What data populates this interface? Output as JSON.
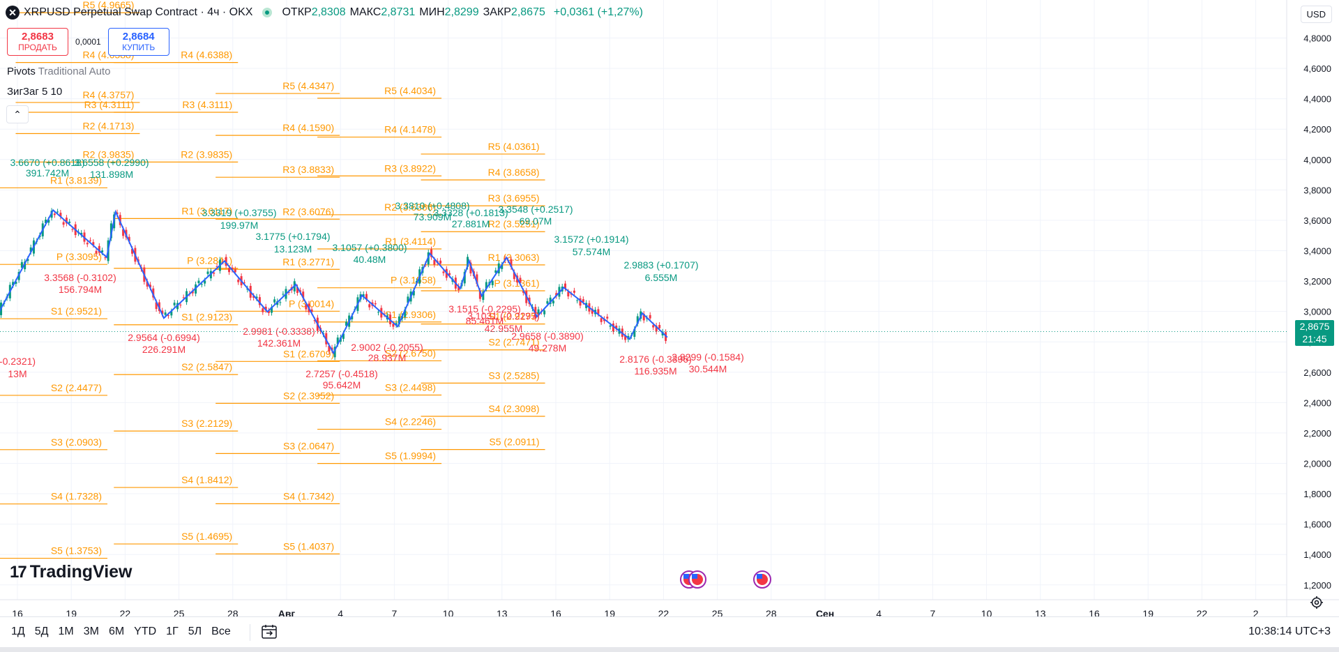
{
  "header": {
    "title": "XRPUSD Perpetual Swap Contract · 4ч · OKX",
    "ohlc": [
      {
        "k": "ОТКР",
        "v": "2,8308"
      },
      {
        "k": "МАКС",
        "v": "2,8731"
      },
      {
        "k": "МИН",
        "v": "2,8299"
      },
      {
        "k": "ЗАКР",
        "v": "2,8675"
      }
    ],
    "change": "+0,0361 (+1,27%)"
  },
  "trade": {
    "sell_price": "2,8683",
    "sell_label": "ПРОДАТЬ",
    "spread": "0,0001",
    "buy_price": "2,8684",
    "buy_label": "КУПИТЬ"
  },
  "indicators": {
    "pivots_name": "Pivots",
    "pivots_params": "Traditional Auto",
    "zigzag_name": "ЗигЗаг",
    "zigzag_params": "5 10"
  },
  "currency": "USD",
  "last_price": {
    "price": "2,8675",
    "countdown": "21:45"
  },
  "colors": {
    "up": "#089981",
    "down": "#f23645",
    "pivot": "#ff9800",
    "zigzag": "#2962ff",
    "grid": "#f0f3fa"
  },
  "chart_data": {
    "type": "candlestick",
    "y_axis": {
      "ticks": [
        "4,8000",
        "4,6000",
        "4,4000",
        "4,2000",
        "4,0000",
        "3,8000",
        "3,6000",
        "3,4000",
        "3,2000",
        "3,0000",
        "2,8000",
        "2,6000",
        "2,4000",
        "2,2000",
        "2,0000",
        "1,8000",
        "1,6000",
        "1,4000",
        "1,2000"
      ],
      "range": [
        1.1,
        5.05
      ]
    },
    "x_axis": {
      "ticks": [
        "16",
        "19",
        "22",
        "25",
        "28",
        "Авг",
        "4",
        "7",
        "10",
        "13",
        "16",
        "19",
        "22",
        "25",
        "28",
        "Сен",
        "4",
        "7",
        "10",
        "13",
        "16",
        "19",
        "22",
        "2"
      ],
      "range": [
        "Jul 14",
        "Oct 2"
      ]
    },
    "zigzag": [
      {
        "date": "Jul 14",
        "price": 2.78
      },
      {
        "date": "Jul 18",
        "price": 3.667
      },
      {
        "date": "Jul 21",
        "price": 3.3568
      },
      {
        "date": "Jul 21.5",
        "price": 3.6558
      },
      {
        "date": "Jul 24.2",
        "price": 2.9564
      },
      {
        "date": "Jul 27.6",
        "price": 3.3319
      },
      {
        "date": "Jul 30",
        "price": 2.9981
      },
      {
        "date": "Jul 31.6",
        "price": 3.1775
      },
      {
        "date": "Aug 2.7",
        "price": 2.7257
      },
      {
        "date": "Aug 4.3",
        "price": 3.1057
      },
      {
        "date": "Aug 6.3",
        "price": 2.9002
      },
      {
        "date": "Aug 8.1",
        "price": 3.381
      },
      {
        "date": "Aug 9.8",
        "price": 3.1515
      },
      {
        "date": "Aug 10.3",
        "price": 3.3328
      },
      {
        "date": "Aug 11",
        "price": 3.1031
      },
      {
        "date": "Aug 12.4",
        "price": 3.3548
      },
      {
        "date": "Aug 14.1",
        "price": 2.9658
      },
      {
        "date": "Aug 15.6",
        "price": 3.1572
      },
      {
        "date": "Aug 19.3",
        "price": 2.8176
      },
      {
        "date": "Aug 20",
        "price": 2.9883
      },
      {
        "date": "Aug 21.4",
        "price": 2.8299
      }
    ],
    "zigzag_labels": [
      {
        "price_change": "3.6670 (+0.8618)",
        "volume": "391.742M",
        "color": "up"
      },
      {
        "price_change": "3.6558 (+0.2990)",
        "volume": "131.898M",
        "color": "up"
      },
      {
        "price_change": "3.3568 (-0.3102)",
        "volume": "156.794M",
        "color": "down"
      },
      {
        "price_change": "2.9564 (-0.6994)",
        "volume": "226.291M",
        "color": "down"
      },
      {
        "price_change": "3.3319 (+0.3755)",
        "volume": "199.97M",
        "color": "up"
      },
      {
        "price_change": "2.9981 (-0.3338)",
        "volume": "142.361M",
        "color": "down"
      },
      {
        "price_change": "3.1775 (+0.1794)",
        "volume": "13.123M",
        "color": "up"
      },
      {
        "price_change": "2.7257 (-0.4518)",
        "volume": "95.642M",
        "color": "down"
      },
      {
        "price_change": "3.1057 (+0.3800)",
        "volume": "40.48M",
        "color": "up"
      },
      {
        "price_change": "2.9002 (-0.2055)",
        "volume": "28.937M",
        "color": "down"
      },
      {
        "price_change": "3.3810 (+0.4808)",
        "volume": "73.909M",
        "color": "up"
      },
      {
        "price_change": "3.3328 (+0.1813)",
        "volume": "27.881M",
        "color": "up"
      },
      {
        "price_change": "3.1515 (-0.2295)",
        "volume": "85.461M",
        "color": "down"
      },
      {
        "price_change": "3.1031 (-0.2297)",
        "volume": "42.955M",
        "color": "down"
      },
      {
        "price_change": "3.3548 (+0.2517)",
        "volume": "69.07M",
        "color": "up"
      },
      {
        "price_change": "2.9658 (-0.3890)",
        "volume": "49.278M",
        "color": "down"
      },
      {
        "price_change": "3.1572 (+0.1914)",
        "volume": "57.574M",
        "color": "up"
      },
      {
        "price_change": "2.8176 (-0.3396)",
        "volume": "116.935M",
        "color": "down"
      },
      {
        "price_change": "2.9883 (+0.1707)",
        "volume": "6.555M",
        "color": "up"
      },
      {
        "price_change": "2.8299 (-0.1584)",
        "volume": "30.544M",
        "color": "down"
      },
      {
        "price_change": "-0.2321)",
        "volume": "13M",
        "color": "down"
      }
    ],
    "pivot_sets": [
      {
        "period": "Jul 14-17",
        "levels": [
          {
            "name": "R1",
            "value": "3.8139"
          },
          {
            "name": "P",
            "value": "3.3095"
          },
          {
            "name": "S1",
            "value": "2.9521"
          },
          {
            "name": "S2",
            "value": "2.4477"
          },
          {
            "name": "S3",
            "value": "2.0903"
          },
          {
            "name": "S4",
            "value": "1.7328"
          },
          {
            "name": "S5",
            "value": "1.3753"
          }
        ]
      },
      {
        "period": "Jul 17-21",
        "levels": [
          {
            "name": "R3",
            "value": "4.3111"
          },
          {
            "name": "R2",
            "value": "4.1713"
          },
          {
            "name": "R2",
            "value": "3.9835"
          },
          {
            "name": "R5",
            "value": "4.9665"
          },
          {
            "name": "R4",
            "value": "4.6388"
          },
          {
            "name": "R4",
            "value": "4.3757"
          }
        ]
      },
      {
        "period": "Jul 21-28",
        "levels": [
          {
            "name": "R4",
            "value": "4.6388"
          },
          {
            "name": "R3",
            "value": "4.3111"
          },
          {
            "name": "R2",
            "value": "3.9835"
          },
          {
            "name": "R1",
            "value": "3.6117"
          },
          {
            "name": "P",
            "value": "3.2841"
          },
          {
            "name": "S1",
            "value": "2.9123"
          },
          {
            "name": "S2",
            "value": "2.5847"
          },
          {
            "name": "S3",
            "value": "2.2129"
          },
          {
            "name": "S4",
            "value": "1.8412"
          },
          {
            "name": "S5",
            "value": "1.4695"
          }
        ]
      },
      {
        "period": "Jul 28-Aug 4",
        "levels": [
          {
            "name": "R5",
            "value": "4.4347"
          },
          {
            "name": "R4",
            "value": "4.1590"
          },
          {
            "name": "R3",
            "value": "3.8833"
          },
          {
            "name": "R2",
            "value": "3.6076"
          },
          {
            "name": "R1",
            "value": "3.2771"
          },
          {
            "name": "P",
            "value": "3.0014"
          },
          {
            "name": "S1",
            "value": "2.6709"
          },
          {
            "name": "S2",
            "value": "2.3952"
          },
          {
            "name": "S3",
            "value": "2.0647"
          },
          {
            "name": "S4",
            "value": "1.7342"
          },
          {
            "name": "S5",
            "value": "1.4037"
          }
        ]
      },
      {
        "period": "Aug 4-11",
        "levels": [
          {
            "name": "R5",
            "value": "4.4034"
          },
          {
            "name": "R4",
            "value": "4.1478"
          },
          {
            "name": "R3",
            "value": "3.8922"
          },
          {
            "name": "R2",
            "value": "3.6366"
          },
          {
            "name": "R1",
            "value": "3.4114"
          },
          {
            "name": "P",
            "value": "3.1558"
          },
          {
            "name": "S1",
            "value": "2.9306"
          },
          {
            "name": "S2",
            "value": "2.6750"
          },
          {
            "name": "S3",
            "value": "2.4498"
          },
          {
            "name": "S4",
            "value": "2.2246"
          },
          {
            "name": "S5",
            "value": "1.9994"
          }
        ]
      },
      {
        "period": "Aug 11-18",
        "levels": [
          {
            "name": "R5",
            "value": "4.0361"
          },
          {
            "name": "R4",
            "value": "3.8658"
          },
          {
            "name": "R3",
            "value": "3.6955"
          },
          {
            "name": "R2",
            "value": "3.5251"
          },
          {
            "name": "R1",
            "value": "3.3063"
          },
          {
            "name": "P",
            "value": "3.1361"
          },
          {
            "name": "S1",
            "value": "2.9175"
          },
          {
            "name": "S2",
            "value": "2.7471"
          },
          {
            "name": "S3",
            "value": "2.5285"
          },
          {
            "name": "S4",
            "value": "2.3098"
          },
          {
            "name": "S5",
            "value": "2.0911"
          }
        ]
      }
    ]
  },
  "bottom_bar": {
    "ranges": [
      "1Д",
      "5Д",
      "1М",
      "3М",
      "6М",
      "YTD",
      "1Г",
      "5Л",
      "Все"
    ],
    "clock": "10:38:14 UTC+3"
  },
  "branding": "TradingView"
}
